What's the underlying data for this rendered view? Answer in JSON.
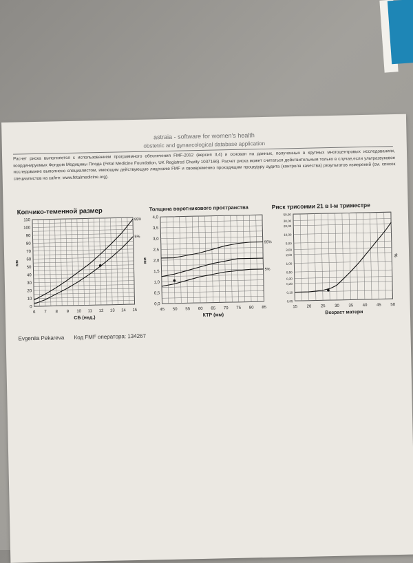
{
  "header": {
    "app_name": "astraia - software for women's health",
    "subtitle": "obstetric and gynaecological database application"
  },
  "disclaimer": "Расчет риска выполняется с использованием программного обеспечения FMF-2012 (версия 3,4) и основан на данных, полученных в крупных многоцентровых исследованиях, координируемых Фондом Медицины Плода (Fetal Medicine Foundation, UK Registred Charity 1037166). Расчет риска может считаться действительным только в случае,если ультразвуковое исследование выполнено специалистом, имеющим действующую лицензию FMF и своевременно проходящим процедуру аудита (контроля качества) результатов измерений (см. список специалистов на сайте: www.fetalmedicine.org).",
  "footer": {
    "operator_name": "Evgeniia Pekareva",
    "fmf_code": "Код FMF оператора: 134267"
  },
  "chart_data": [
    {
      "type": "line",
      "title": "Копчико-теменной размер",
      "xlabel": "СБ (нед.)",
      "ylabel": "мм",
      "xlim": [
        6,
        15
      ],
      "ylim": [
        0,
        110
      ],
      "x_ticks": [
        "6",
        "7",
        "8",
        "9",
        "10",
        "11",
        "12",
        "13",
        "14",
        "15"
      ],
      "y_ticks": [
        "0",
        "10",
        "20",
        "30",
        "40",
        "50",
        "60",
        "70",
        "80",
        "90",
        "100",
        "110"
      ],
      "grid": true,
      "series": [
        {
          "name": "95%",
          "x": [
            6,
            7,
            8,
            9,
            10,
            11,
            12,
            13,
            14,
            15
          ],
          "values": [
            8,
            15,
            23,
            32,
            42,
            52,
            64,
            77,
            91,
            108
          ]
        },
        {
          "name": "5%",
          "x": [
            6,
            7,
            8,
            9,
            10,
            11,
            12,
            13,
            14,
            15
          ],
          "values": [
            3,
            8,
            15,
            22,
            30,
            39,
            49,
            60,
            72,
            86
          ]
        }
      ],
      "points": [
        {
          "x": 12,
          "y": 50
        }
      ]
    },
    {
      "type": "line",
      "title": "Толщина воротникового пространства",
      "xlabel": "КТР (мм)",
      "ylabel": "мм",
      "xlim": [
        45,
        85
      ],
      "ylim": [
        0,
        4
      ],
      "x_ticks": [
        "45",
        "50",
        "55",
        "60",
        "65",
        "70",
        "75",
        "80",
        "85"
      ],
      "y_ticks": [
        "0,0",
        "0,5",
        "1,0",
        "1,5",
        "2,0",
        "2,5",
        "3,0",
        "3,5",
        "4,0"
      ],
      "grid": true,
      "series": [
        {
          "name": "95%",
          "x": [
            45,
            50,
            55,
            60,
            65,
            70,
            75,
            80,
            85
          ],
          "values": [
            2.1,
            2.1,
            2.2,
            2.3,
            2.45,
            2.6,
            2.7,
            2.75,
            2.75
          ]
        },
        {
          "name": "",
          "x": [
            45,
            50,
            55,
            60,
            65,
            70,
            75,
            80,
            85
          ],
          "values": [
            1.25,
            1.35,
            1.5,
            1.65,
            1.8,
            1.9,
            2.0,
            2.0,
            2.0
          ]
        },
        {
          "name": "5%",
          "x": [
            45,
            50,
            55,
            60,
            65,
            70,
            75,
            80,
            85
          ],
          "values": [
            0.8,
            0.9,
            1.05,
            1.2,
            1.3,
            1.4,
            1.45,
            1.5,
            1.5
          ]
        }
      ],
      "points": [
        {
          "x": 50,
          "y": 1.05
        }
      ]
    },
    {
      "type": "line",
      "title": "Риск трисомии 21 в I-м триместре",
      "xlabel": "Возраст матери",
      "ylabel": "%",
      "xlim": [
        15,
        50
      ],
      "ylim": [
        0.05,
        50
      ],
      "scale_y": "log",
      "x_ticks": [
        "15",
        "20",
        "25",
        "30",
        "35",
        "40",
        "45",
        "50"
      ],
      "y_ticks": [
        "0,05",
        "0,10",
        "0,20",
        "0,30",
        "0,50",
        "1,00",
        "2,00",
        "3,00",
        "5,00",
        "10,00",
        "20,00",
        "30,00",
        "50,00"
      ],
      "grid": true,
      "series": [
        {
          "name": "",
          "x": [
            15,
            20,
            25,
            28,
            30,
            32,
            35,
            38,
            40,
            42,
            45,
            48,
            50
          ],
          "values": [
            0.1,
            0.1,
            0.11,
            0.13,
            0.16,
            0.24,
            0.45,
            0.9,
            1.5,
            2.5,
            5.5,
            12,
            22
          ]
        }
      ],
      "points": [
        {
          "x": 27,
          "y": 0.11
        }
      ]
    }
  ]
}
